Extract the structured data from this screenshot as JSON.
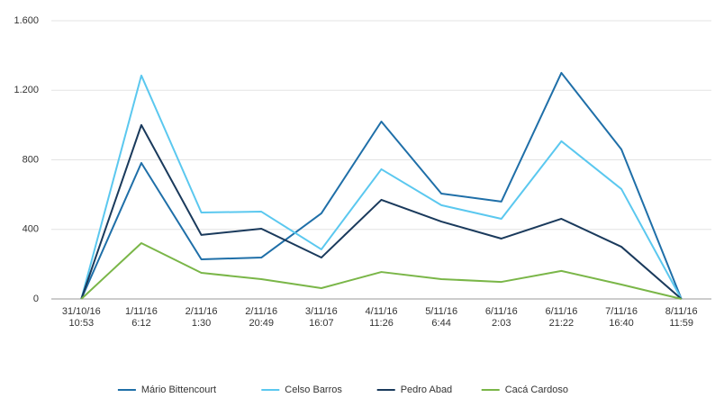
{
  "chart_data": {
    "type": "line",
    "categories": [
      [
        "31/10/16",
        "10:53"
      ],
      [
        "1/11/16",
        "6:12"
      ],
      [
        "2/11/16",
        "1:30"
      ],
      [
        "2/11/16",
        "20:49"
      ],
      [
        "3/11/16",
        "16:07"
      ],
      [
        "4/11/16",
        "11:26"
      ],
      [
        "5/11/16",
        "6:44"
      ],
      [
        "6/11/16",
        "2:03"
      ],
      [
        "6/11/16",
        "21:22"
      ],
      [
        "7/11/16",
        "16:40"
      ],
      [
        "8/11/16",
        "11:59"
      ]
    ],
    "series": [
      {
        "name": "Mário Bittencourt",
        "color": "#1f6fa8",
        "values": [
          0,
          782,
          228,
          238,
          492,
          1020,
          606,
          560,
          1300,
          860,
          0
        ]
      },
      {
        "name": "Celso Barros",
        "color": "#5bc8ef",
        "values": [
          0,
          1285,
          497,
          502,
          285,
          746,
          539,
          461,
          907,
          632,
          0
        ]
      },
      {
        "name": "Pedro Abad",
        "color": "#1a3a5c",
        "values": [
          0,
          1000,
          368,
          404,
          238,
          570,
          445,
          347,
          461,
          300,
          0
        ]
      },
      {
        "name": "Cacá Cardoso",
        "color": "#7ab648",
        "values": [
          0,
          321,
          150,
          114,
          62,
          155,
          114,
          98,
          161,
          83,
          0
        ]
      }
    ],
    "ylim": [
      0,
      1600
    ],
    "yticks": [
      0,
      400,
      800,
      {
        "value": 1200,
        "label": "1.200"
      },
      {
        "value": 1600,
        "label": "1.600"
      }
    ],
    "grid": true,
    "legend": "bottom"
  }
}
